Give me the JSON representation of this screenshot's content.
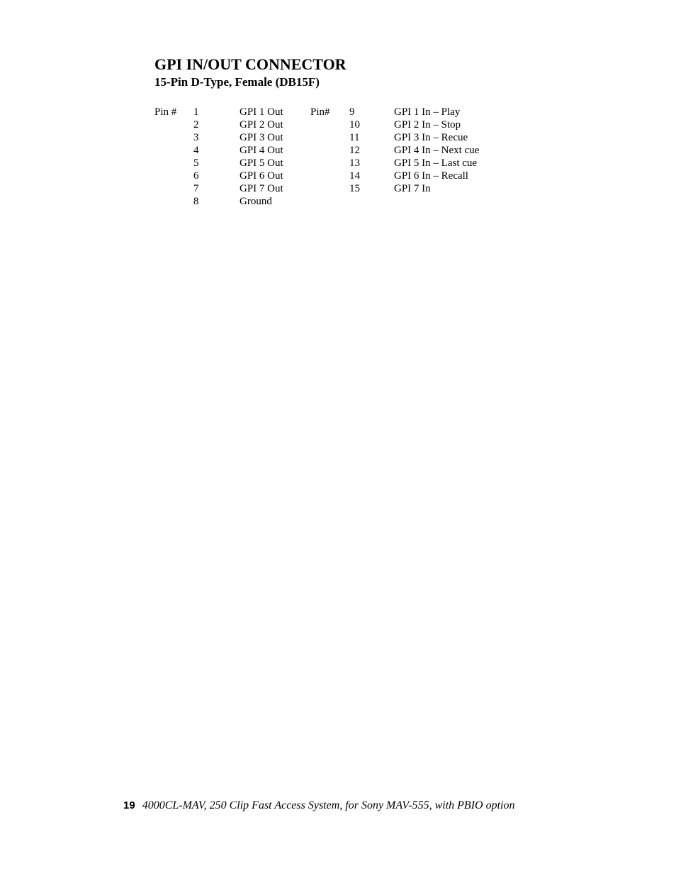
{
  "heading": {
    "main": "GPI IN/OUT CONNECTOR",
    "sub": "15-Pin D-Type, Female (DB15F)"
  },
  "table": {
    "header_left": "Pin #",
    "header_right": "Pin#",
    "left_rows": [
      {
        "pin": "1",
        "desc": "GPI 1 Out"
      },
      {
        "pin": "2",
        "desc": "GPI 2 Out"
      },
      {
        "pin": "3",
        "desc": "GPI 3 Out"
      },
      {
        "pin": "4",
        "desc": "GPI 4 Out"
      },
      {
        "pin": "5",
        "desc": "GPI 5 Out"
      },
      {
        "pin": "6",
        "desc": "GPI 6 Out"
      },
      {
        "pin": "7",
        "desc": "GPI 7 Out"
      },
      {
        "pin": "8",
        "desc": "Ground"
      }
    ],
    "right_rows": [
      {
        "pin": "9",
        "desc": "GPI 1 In – Play"
      },
      {
        "pin": "10",
        "desc": "GPI 2 In – Stop"
      },
      {
        "pin": "11",
        "desc": "GPI 3 In – Recue"
      },
      {
        "pin": "12",
        "desc": "GPI 4 In – Next cue"
      },
      {
        "pin": "13",
        "desc": "GPI 5 In – Last cue"
      },
      {
        "pin": "14",
        "desc": "GPI 6 In – Recall"
      },
      {
        "pin": "15",
        "desc": "GPI 7 In"
      }
    ]
  },
  "footer": {
    "page_number": "19",
    "text": "4000CL-MAV, 250 Clip Fast Access System,  for Sony MAV-555, with PBIO option"
  },
  "styling": {
    "background_color": "#ffffff",
    "text_color": "#000000",
    "font_family": "Times New Roman",
    "heading_main_fontsize": 22,
    "heading_sub_fontsize": 17,
    "body_fontsize": 15,
    "footer_fontsize": 16,
    "page_num_font": "Arial"
  }
}
